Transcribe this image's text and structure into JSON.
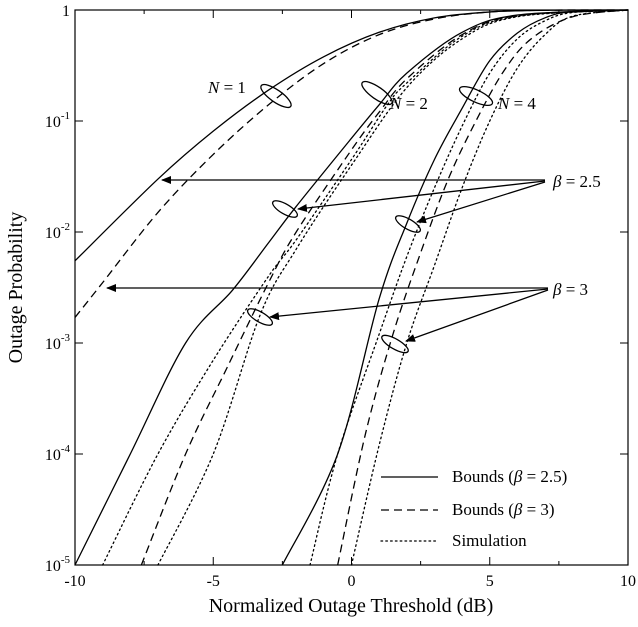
{
  "chart_data": {
    "type": "line",
    "xlabel": "Normalized Outage Threshold (dB)",
    "ylabel": "Outage Probability",
    "xlim": [
      -10,
      10
    ],
    "ylim": [
      1e-05,
      1
    ],
    "yscale": "log",
    "grid": false,
    "legend_position": "bottom-right",
    "x_ticks": [
      -10,
      -5,
      0,
      5,
      10
    ],
    "x_tick_labels": [
      "-10",
      "-5",
      "0",
      "5",
      "10"
    ],
    "y_ticks": [
      1e-05,
      0.0001,
      0.001,
      0.01,
      0.1,
      1
    ],
    "y_tick_labels": [
      {
        "base": "10",
        "exp": "-5"
      },
      {
        "base": "10",
        "exp": "-4"
      },
      {
        "base": "10",
        "exp": "-3"
      },
      {
        "base": "10",
        "exp": "-2"
      },
      {
        "base": "10",
        "exp": "-1"
      },
      {
        "base": "1",
        "exp": ""
      }
    ],
    "legend": [
      {
        "text": "Bounds (β = 2.5)",
        "style": "solid"
      },
      {
        "text": "Bounds (β = 3)",
        "style": "dashed"
      },
      {
        "text": "Simulation",
        "style": "dotted"
      }
    ],
    "annotations": {
      "n1": "N = 1",
      "n2": "N = 2",
      "n4": "N = 4",
      "beta25": "β = 2.5",
      "beta3": "β = 3"
    },
    "series": [
      {
        "legend_group": "Bounds (β = 2.5)",
        "N": 1,
        "style": "solid",
        "x": [
          -10,
          -7,
          -5,
          -3,
          -1,
          1,
          3,
          5,
          7,
          10
        ],
        "y": [
          0.0055,
          0.03,
          0.081,
          0.19,
          0.38,
          0.63,
          0.85,
          0.96,
          0.995,
          1.0
        ]
      },
      {
        "legend_group": "Bounds (β = 3)",
        "N": 1,
        "style": "dashed",
        "x": [
          -10,
          -9,
          -7,
          -5,
          -3,
          -1,
          1,
          3,
          5,
          7,
          10
        ],
        "y": [
          0.0017,
          0.0035,
          0.015,
          0.05,
          0.14,
          0.33,
          0.6,
          0.83,
          0.96,
          0.995,
          1.0
        ]
      },
      {
        "legend_group": "Bounds (β = 2.5)",
        "N": 2,
        "style": "solid",
        "x": [
          -10,
          -8,
          -6,
          -4.3,
          -3,
          -2,
          0,
          1,
          2,
          4,
          6,
          10
        ],
        "y": [
          1e-05,
          0.0001,
          0.001,
          0.003,
          0.008,
          0.017,
          0.07,
          0.14,
          0.27,
          0.63,
          0.9,
          1.0
        ]
      },
      {
        "legend_group": "Bounds (β = 3)",
        "N": 2,
        "style": "dashed",
        "x": [
          -7.6,
          -6,
          -4.5,
          -3,
          -2,
          0,
          1,
          2,
          4,
          6,
          10
        ],
        "y": [
          1e-05,
          0.0001,
          0.0006,
          0.0035,
          0.01,
          0.055,
          0.12,
          0.24,
          0.6,
          0.89,
          1.0
        ]
      },
      {
        "legend_group": "Simulation",
        "N": 2,
        "style": "dotted",
        "x": [
          -9,
          -7,
          -5,
          -3,
          -2,
          0,
          1.3,
          2,
          4,
          6,
          10
        ],
        "y": [
          1e-05,
          0.0001,
          0.0007,
          0.004,
          0.0085,
          0.045,
          0.14,
          0.22,
          0.58,
          0.88,
          1.0
        ]
      },
      {
        "legend_group": "Simulation",
        "N": 2,
        "style": "dotted",
        "x": [
          -7,
          -5,
          -3.3,
          -2,
          0,
          2,
          4,
          6,
          10
        ],
        "y": [
          1e-05,
          0.0001,
          0.0018,
          0.007,
          0.04,
          0.2,
          0.55,
          0.87,
          1.0
        ]
      },
      {
        "legend_group": "Bounds (β = 2.5)",
        "N": 4,
        "style": "solid",
        "x": [
          -2.5,
          -0.5,
          1,
          2,
          3,
          4,
          5,
          6,
          7,
          8,
          10
        ],
        "y": [
          1e-05,
          0.0001,
          0.0025,
          0.012,
          0.045,
          0.13,
          0.35,
          0.62,
          0.85,
          0.97,
          1.0
        ]
      },
      {
        "legend_group": "Bounds (β = 3)",
        "N": 4,
        "style": "dashed",
        "x": [
          -0.5,
          0.5,
          1.5,
          2.5,
          3.5,
          4.5,
          5.5,
          6.5,
          8,
          10
        ],
        "y": [
          1e-05,
          0.00015,
          0.0012,
          0.0065,
          0.03,
          0.1,
          0.28,
          0.55,
          0.87,
          1.0
        ]
      },
      {
        "legend_group": "Simulation",
        "N": 4,
        "style": "dotted",
        "x": [
          -1.5,
          -0.5,
          1,
          2,
          3,
          4,
          5,
          6,
          7,
          8,
          10
        ],
        "y": [
          1e-05,
          0.0001,
          0.0012,
          0.006,
          0.025,
          0.09,
          0.27,
          0.55,
          0.8,
          0.95,
          1.0
        ]
      },
      {
        "legend_group": "Simulation",
        "N": 4,
        "style": "dotted",
        "x": [
          0,
          1,
          2,
          3,
          4,
          5,
          6,
          7,
          8,
          10
        ],
        "y": [
          1e-05,
          0.00012,
          0.001,
          0.005,
          0.025,
          0.1,
          0.3,
          0.6,
          0.88,
          1.0
        ]
      }
    ]
  }
}
